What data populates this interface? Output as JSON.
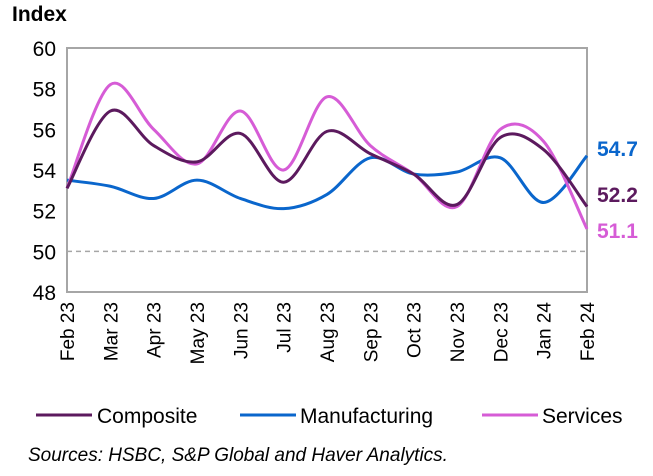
{
  "chart_data": {
    "type": "line",
    "title": "",
    "ylabel": "Index",
    "xlabel": "",
    "ylim": [
      48,
      60
    ],
    "yticks": [
      60,
      58,
      56,
      54,
      52,
      50,
      48
    ],
    "ytick_labels": [
      "60",
      "58",
      "56",
      "54",
      "52",
      "50",
      "48"
    ],
    "reference_line": {
      "y": 50,
      "style": "dashed",
      "color": "#a6a6a6"
    },
    "grid": false,
    "categories": [
      "Feb 23",
      "Mar 23",
      "Apr 23",
      "May 23",
      "Jun 23",
      "Jul 23",
      "Aug 23",
      "Sep 23",
      "Oct 23",
      "Nov 23",
      "Dec 23",
      "Jan 24",
      "Feb 24"
    ],
    "series": [
      {
        "name": "Composite",
        "color": "#5c1a5e",
        "values": [
          53.1,
          56.9,
          55.2,
          54.4,
          55.8,
          53.4,
          55.9,
          54.8,
          53.8,
          52.3,
          55.6,
          55.0,
          52.2
        ],
        "end_label": "52.2"
      },
      {
        "name": "Manufacturing",
        "color": "#0a66cc",
        "values": [
          53.5,
          53.2,
          52.6,
          53.5,
          52.6,
          52.1,
          52.8,
          54.6,
          53.8,
          53.9,
          54.6,
          52.4,
          54.7
        ],
        "end_label": "54.7"
      },
      {
        "name": "Services",
        "color": "#d65cd6",
        "values": [
          53.1,
          58.2,
          56.0,
          54.3,
          56.9,
          54.0,
          57.6,
          55.2,
          53.8,
          52.2,
          56.0,
          55.4,
          51.1
        ],
        "end_label": "51.1"
      }
    ],
    "legend_position": "bottom",
    "source": "Sources: HSBC, S&P Global and Haver Analytics."
  }
}
